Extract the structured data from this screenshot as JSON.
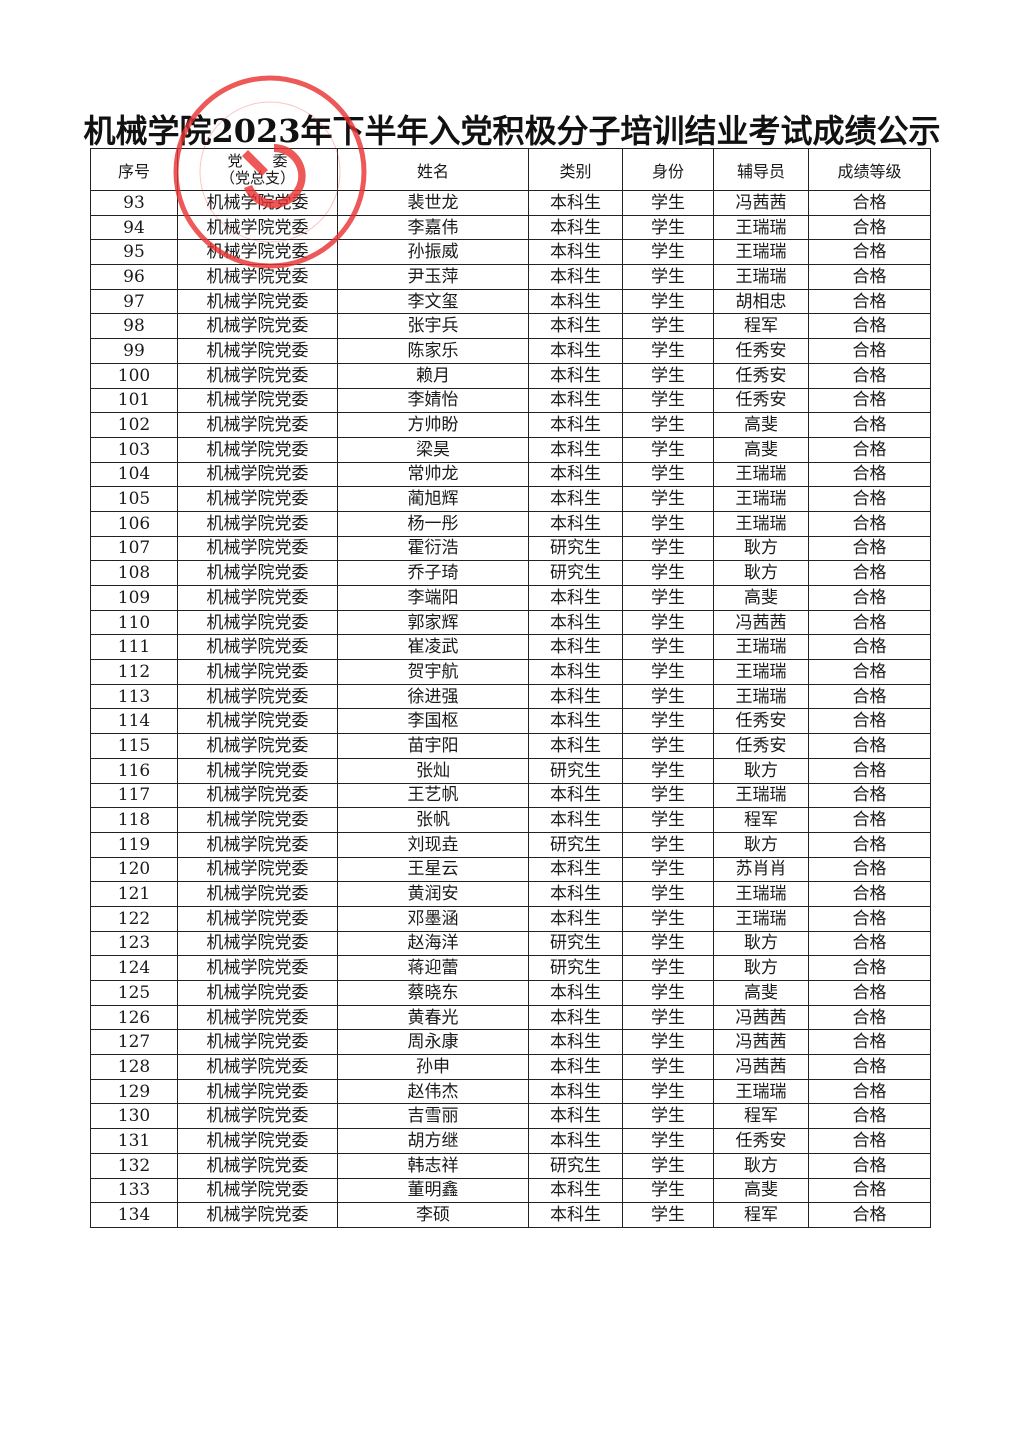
{
  "title": "机械学院2023年下半年入党积极分子培训结业考试成绩公示",
  "colors": {
    "stamp": "#e8302f",
    "text": "#1a1a1a"
  },
  "table": {
    "headers": {
      "no": "序号",
      "party_line1": "党　　委",
      "party_line2": "（党总支）",
      "name": "姓名",
      "category": "类别",
      "identity": "身份",
      "advisor": "辅导员",
      "grade": "成绩等级"
    },
    "rows": [
      [
        "93",
        "机械学院党委",
        "裴世龙",
        "本科生",
        "学生",
        "冯茜茜",
        "合格"
      ],
      [
        "94",
        "机械学院党委",
        "李嘉伟",
        "本科生",
        "学生",
        "王瑞瑞",
        "合格"
      ],
      [
        "95",
        "机械学院党委",
        "孙振威",
        "本科生",
        "学生",
        "王瑞瑞",
        "合格"
      ],
      [
        "96",
        "机械学院党委",
        "尹玉萍",
        "本科生",
        "学生",
        "王瑞瑞",
        "合格"
      ],
      [
        "97",
        "机械学院党委",
        "李文玺",
        "本科生",
        "学生",
        "胡相忠",
        "合格"
      ],
      [
        "98",
        "机械学院党委",
        "张宇兵",
        "本科生",
        "学生",
        "程军",
        "合格"
      ],
      [
        "99",
        "机械学院党委",
        "陈家乐",
        "本科生",
        "学生",
        "任秀安",
        "合格"
      ],
      [
        "100",
        "机械学院党委",
        "赖月",
        "本科生",
        "学生",
        "任秀安",
        "合格"
      ],
      [
        "101",
        "机械学院党委",
        "李婧怡",
        "本科生",
        "学生",
        "任秀安",
        "合格"
      ],
      [
        "102",
        "机械学院党委",
        "方帅盼",
        "本科生",
        "学生",
        "高斐",
        "合格"
      ],
      [
        "103",
        "机械学院党委",
        "梁昊",
        "本科生",
        "学生",
        "高斐",
        "合格"
      ],
      [
        "104",
        "机械学院党委",
        "常帅龙",
        "本科生",
        "学生",
        "王瑞瑞",
        "合格"
      ],
      [
        "105",
        "机械学院党委",
        "蔺旭辉",
        "本科生",
        "学生",
        "王瑞瑞",
        "合格"
      ],
      [
        "106",
        "机械学院党委",
        "杨一彤",
        "本科生",
        "学生",
        "王瑞瑞",
        "合格"
      ],
      [
        "107",
        "机械学院党委",
        "霍衍浩",
        "研究生",
        "学生",
        "耿方",
        "合格"
      ],
      [
        "108",
        "机械学院党委",
        "乔子琦",
        "研究生",
        "学生",
        "耿方",
        "合格"
      ],
      [
        "109",
        "机械学院党委",
        "李端阳",
        "本科生",
        "学生",
        "高斐",
        "合格"
      ],
      [
        "110",
        "机械学院党委",
        "郭家辉",
        "本科生",
        "学生",
        "冯茜茜",
        "合格"
      ],
      [
        "111",
        "机械学院党委",
        "崔凌武",
        "本科生",
        "学生",
        "王瑞瑞",
        "合格"
      ],
      [
        "112",
        "机械学院党委",
        "贺宇航",
        "本科生",
        "学生",
        "王瑞瑞",
        "合格"
      ],
      [
        "113",
        "机械学院党委",
        "徐进强",
        "本科生",
        "学生",
        "王瑞瑞",
        "合格"
      ],
      [
        "114",
        "机械学院党委",
        "李国枢",
        "本科生",
        "学生",
        "任秀安",
        "合格"
      ],
      [
        "115",
        "机械学院党委",
        "苗宇阳",
        "本科生",
        "学生",
        "任秀安",
        "合格"
      ],
      [
        "116",
        "机械学院党委",
        "张灿",
        "研究生",
        "学生",
        "耿方",
        "合格"
      ],
      [
        "117",
        "机械学院党委",
        "王艺帆",
        "本科生",
        "学生",
        "王瑞瑞",
        "合格"
      ],
      [
        "118",
        "机械学院党委",
        "张帆",
        "本科生",
        "学生",
        "程军",
        "合格"
      ],
      [
        "119",
        "机械学院党委",
        "刘现垚",
        "研究生",
        "学生",
        "耿方",
        "合格"
      ],
      [
        "120",
        "机械学院党委",
        "王星云",
        "本科生",
        "学生",
        "苏肖肖",
        "合格"
      ],
      [
        "121",
        "机械学院党委",
        "黄润安",
        "本科生",
        "学生",
        "王瑞瑞",
        "合格"
      ],
      [
        "122",
        "机械学院党委",
        "邓墨涵",
        "本科生",
        "学生",
        "王瑞瑞",
        "合格"
      ],
      [
        "123",
        "机械学院党委",
        "赵海洋",
        "研究生",
        "学生",
        "耿方",
        "合格"
      ],
      [
        "124",
        "机械学院党委",
        "蒋迎蕾",
        "研究生",
        "学生",
        "耿方",
        "合格"
      ],
      [
        "125",
        "机械学院党委",
        "蔡晓东",
        "本科生",
        "学生",
        "高斐",
        "合格"
      ],
      [
        "126",
        "机械学院党委",
        "黄春光",
        "本科生",
        "学生",
        "冯茜茜",
        "合格"
      ],
      [
        "127",
        "机械学院党委",
        "周永康",
        "本科生",
        "学生",
        "冯茜茜",
        "合格"
      ],
      [
        "128",
        "机械学院党委",
        "孙申",
        "本科生",
        "学生",
        "冯茜茜",
        "合格"
      ],
      [
        "129",
        "机械学院党委",
        "赵伟杰",
        "本科生",
        "学生",
        "王瑞瑞",
        "合格"
      ],
      [
        "130",
        "机械学院党委",
        "吉雪丽",
        "本科生",
        "学生",
        "程军",
        "合格"
      ],
      [
        "131",
        "机械学院党委",
        "胡方继",
        "本科生",
        "学生",
        "任秀安",
        "合格"
      ],
      [
        "132",
        "机械学院党委",
        "韩志祥",
        "研究生",
        "学生",
        "耿方",
        "合格"
      ],
      [
        "133",
        "机械学院党委",
        "董明鑫",
        "本科生",
        "学生",
        "高斐",
        "合格"
      ],
      [
        "134",
        "机械学院党委",
        "李硕",
        "本科生",
        "学生",
        "程军",
        "合格"
      ]
    ]
  }
}
